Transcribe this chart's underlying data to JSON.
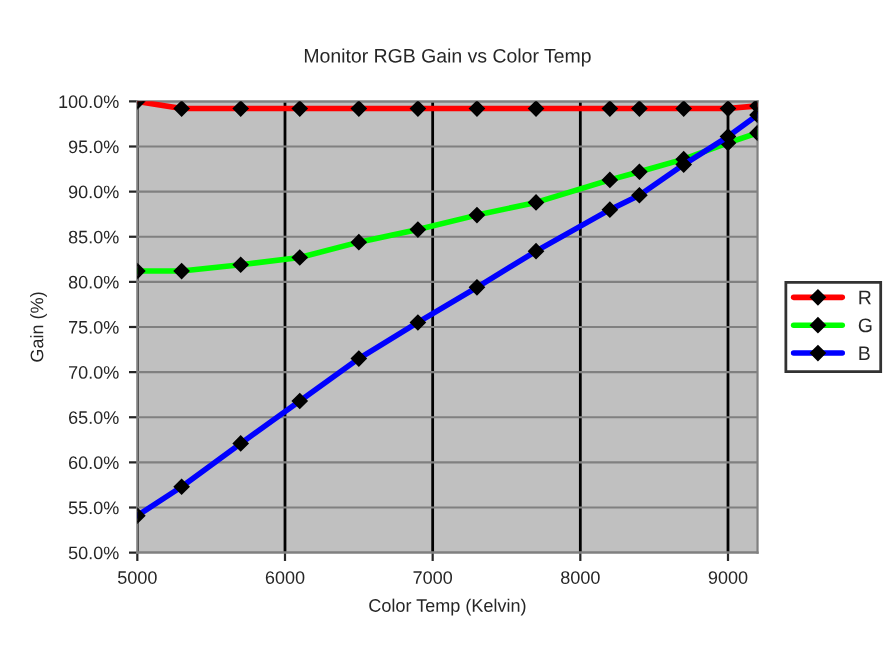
{
  "chart_data": {
    "type": "line",
    "title": "Monitor RGB Gain vs Color Temp",
    "xlabel": "Color Temp (Kelvin)",
    "ylabel": "Gain (%)",
    "x": [
      5000,
      5300,
      5700,
      6100,
      6500,
      6900,
      7300,
      7700,
      8200,
      8400,
      8700,
      9000,
      9200
    ],
    "series": [
      {
        "name": "R",
        "color": "#ff0000",
        "values": [
          100.0,
          99.2,
          99.2,
          99.2,
          99.2,
          99.2,
          99.2,
          99.2,
          99.2,
          99.2,
          99.2,
          99.2,
          99.5
        ]
      },
      {
        "name": "G",
        "color": "#00ff00",
        "values": [
          81.2,
          81.2,
          81.9,
          82.7,
          84.4,
          85.8,
          87.4,
          88.8,
          91.3,
          92.2,
          93.6,
          95.4,
          96.5
        ]
      },
      {
        "name": "B",
        "color": "#0000ff",
        "values": [
          54.1,
          57.3,
          62.1,
          66.8,
          71.5,
          75.5,
          79.4,
          83.4,
          88.0,
          89.6,
          93.0,
          96.1,
          98.5
        ]
      }
    ],
    "xlim": [
      5000,
      9200
    ],
    "xticks": [
      5000,
      6000,
      7000,
      8000,
      9000
    ],
    "ylim": [
      50,
      100
    ],
    "yticks": [
      {
        "value": 50,
        "label": "50.0%"
      },
      {
        "value": 55,
        "label": "55.0%"
      },
      {
        "value": 60,
        "label": "60.0%"
      },
      {
        "value": 65,
        "label": "65.0%"
      },
      {
        "value": 70,
        "label": "70.0%"
      },
      {
        "value": 75,
        "label": "75.0%"
      },
      {
        "value": 80,
        "label": "80.0%"
      },
      {
        "value": 85,
        "label": "85.0%"
      },
      {
        "value": 90,
        "label": "90.0%"
      },
      {
        "value": 95,
        "label": "95.0%"
      },
      {
        "value": 100,
        "label": "100.0%"
      }
    ],
    "grid": true,
    "legend": "right",
    "marker": "diamond",
    "line_style": "solid"
  }
}
